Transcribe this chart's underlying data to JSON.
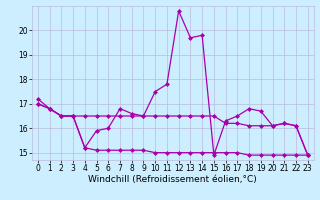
{
  "xlabel": "Windchill (Refroidissement éolien,°C)",
  "bg_color": "#cceeff",
  "line_color": "#aa00aa",
  "xlim": [
    -0.5,
    23.5
  ],
  "ylim": [
    14.7,
    21.0
  ],
  "yticks": [
    15,
    16,
    17,
    18,
    19,
    20
  ],
  "xticks": [
    0,
    1,
    2,
    3,
    4,
    5,
    6,
    7,
    8,
    9,
    10,
    11,
    12,
    13,
    14,
    15,
    16,
    17,
    18,
    19,
    20,
    21,
    22,
    23
  ],
  "series": [
    [
      17.2,
      16.8,
      16.5,
      16.5,
      15.2,
      15.9,
      16.0,
      16.8,
      16.6,
      16.5,
      17.5,
      17.8,
      20.8,
      19.7,
      19.8,
      14.9,
      16.3,
      16.5,
      16.8,
      16.7,
      16.1,
      16.2,
      16.1,
      14.9
    ],
    [
      17.0,
      16.8,
      16.5,
      16.5,
      16.5,
      16.5,
      16.5,
      16.5,
      16.5,
      16.5,
      16.5,
      16.5,
      16.5,
      16.5,
      16.5,
      16.5,
      16.2,
      16.2,
      16.1,
      16.1,
      16.1,
      16.2,
      16.1,
      14.9
    ],
    [
      17.0,
      16.8,
      16.5,
      16.5,
      15.2,
      15.1,
      15.1,
      15.1,
      15.1,
      15.1,
      15.0,
      15.0,
      15.0,
      15.0,
      15.0,
      15.0,
      15.0,
      15.0,
      14.9,
      14.9,
      14.9,
      14.9,
      14.9,
      14.9
    ]
  ],
  "marker": "D",
  "markersize": 2.0,
  "linewidth": 0.9,
  "grid_color": "#bbbbdd",
  "tick_fontsize": 5.5,
  "xlabel_fontsize": 6.5
}
